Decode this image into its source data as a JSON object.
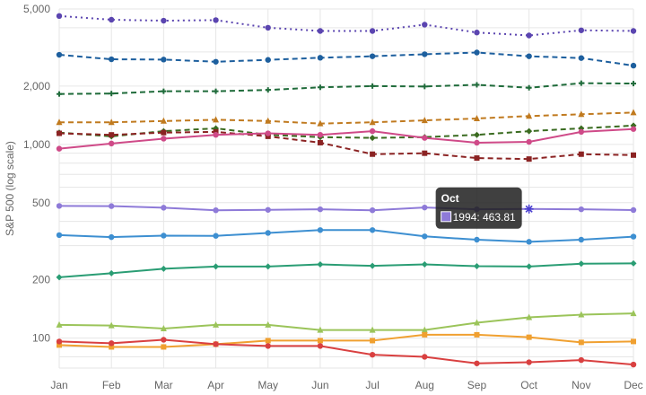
{
  "chart_data": {
    "type": "line",
    "title": "",
    "xlabel": "",
    "ylabel": "S&P 500 (log scale)",
    "y_scale": "log",
    "ylim": [
      70,
      5000
    ],
    "y_ticks": [
      100,
      200,
      500,
      1000,
      2000,
      5000
    ],
    "y_tick_labels": [
      "100",
      "200",
      "500",
      "1,000",
      "2,000",
      "5,000"
    ],
    "categories": [
      "Jan",
      "Feb",
      "Mar",
      "Apr",
      "May",
      "Jun",
      "Jul",
      "Aug",
      "Sep",
      "Oct",
      "Nov",
      "Dec"
    ],
    "grid": true,
    "legend": "none",
    "series": [
      {
        "color": "#5b45b0",
        "dash": "2,4",
        "marker": "circle",
        "values": [
          4600,
          4400,
          4350,
          4380,
          4000,
          3850,
          3850,
          4150,
          3780,
          3650,
          3880,
          3850
        ]
      },
      {
        "color": "#1d5f9e",
        "dash": "6,4",
        "marker": "circle",
        "values": [
          2900,
          2750,
          2740,
          2670,
          2730,
          2800,
          2850,
          2920,
          2980,
          2850,
          2790,
          2550
        ]
      },
      {
        "color": "#1f6b3a",
        "dash": "6,4",
        "marker": "plus",
        "values": [
          1820,
          1830,
          1880,
          1880,
          1910,
          1970,
          2000,
          1990,
          2030,
          1960,
          2070,
          2060
        ]
      },
      {
        "color": "#c07a1f",
        "dash": "6,4",
        "marker": "triangle",
        "values": [
          1300,
          1300,
          1320,
          1340,
          1320,
          1280,
          1300,
          1330,
          1360,
          1400,
          1430,
          1460
        ]
      },
      {
        "color": "#3a6b20",
        "dash": "6,4",
        "marker": "diamond",
        "values": [
          1150,
          1100,
          1170,
          1210,
          1120,
          1090,
          1080,
          1090,
          1120,
          1170,
          1210,
          1250
        ]
      },
      {
        "color": "#8b2323",
        "dash": "6,4",
        "marker": "square",
        "values": [
          1140,
          1120,
          1150,
          1160,
          1100,
          1020,
          890,
          900,
          850,
          840,
          890,
          880
        ]
      },
      {
        "color": "#cf4a88",
        "dash": "",
        "marker": "circle",
        "values": [
          950,
          1010,
          1070,
          1120,
          1140,
          1120,
          1170,
          1080,
          1020,
          1030,
          1160,
          1200
        ]
      },
      {
        "color": "#8e7ad8",
        "dash": "",
        "marker": "circle",
        "values": [
          481,
          480,
          471,
          457,
          459,
          462,
          457,
          472,
          462,
          463.81,
          462,
          458
        ]
      },
      {
        "color": "#3d8fd1",
        "dash": "",
        "marker": "circle",
        "values": [
          340,
          332,
          338,
          337,
          349,
          361,
          361,
          335,
          322,
          314,
          322,
          334
        ]
      },
      {
        "color": "#2a9d74",
        "dash": "",
        "marker": "diamond",
        "values": [
          206,
          216,
          228,
          234,
          234,
          240,
          236,
          240,
          235,
          234,
          242,
          243
        ]
      },
      {
        "color": "#9bc45a",
        "dash": "",
        "marker": "triangle",
        "values": [
          117,
          116,
          112,
          117,
          117,
          110,
          110,
          110,
          120,
          128,
          132,
          134
        ]
      },
      {
        "color": "#f0a030",
        "dash": "",
        "marker": "square",
        "values": [
          92,
          90,
          90,
          93,
          97,
          97,
          97,
          104,
          104,
          101,
          95,
          96
        ]
      },
      {
        "color": "#d94040",
        "dash": "",
        "marker": "circle",
        "values": [
          96,
          94,
          98,
          93,
          91,
          91,
          82,
          80,
          74,
          75,
          77,
          73
        ]
      }
    ],
    "tooltip": {
      "title": "Oct",
      "label": "1994: 463.81",
      "swatch_color": "#8e7ad8",
      "category": "Oct",
      "value": 463.81,
      "series_index": 7
    }
  }
}
